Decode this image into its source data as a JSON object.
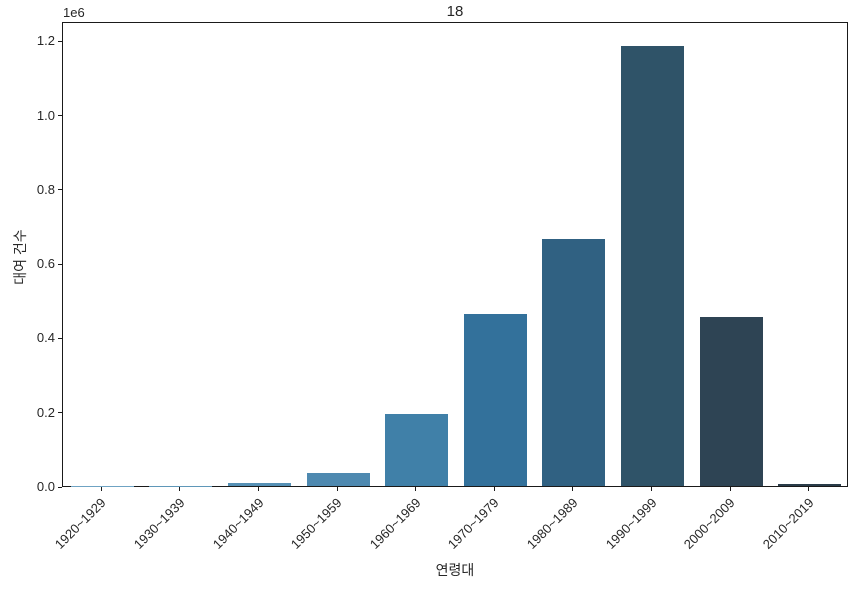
{
  "figure": {
    "title": "18",
    "offset_label": "1e6",
    "xlabel": "연령대",
    "ylabel": "대여 건수"
  },
  "chart_data": {
    "type": "bar",
    "title": "18",
    "xlabel": "연령대",
    "ylabel": "대여 건수",
    "y_offset_multiplier_label": "1e6",
    "categories": [
      "1920~1929",
      "1930~1939",
      "1940~1949",
      "1950~1959",
      "1960~1969",
      "1970~1979",
      "1980~1989",
      "1990~1999",
      "2000~2009",
      "2010~2019"
    ],
    "values": [
      500,
      1000,
      7000,
      36000,
      195000,
      464000,
      665000,
      1186000,
      454000,
      5000
    ],
    "bar_colors": [
      "#6fa3c3",
      "#5f97b8",
      "#5590b5",
      "#4e89b0",
      "#4080a8",
      "#33719b",
      "#306182",
      "#2f5368",
      "#2e4454",
      "#2a3c49"
    ],
    "ylim": [
      0,
      1252500
    ],
    "yticks": {
      "values": [
        0,
        200000,
        400000,
        600000,
        800000,
        1000000,
        1200000
      ],
      "labels": [
        "0.0",
        "0.2",
        "0.4",
        "0.6",
        "0.8",
        "1.0",
        "1.2"
      ]
    },
    "x_tick_rotation_deg": 45,
    "grid": false,
    "legend": null,
    "background_color": "#ffffff",
    "spine_color": "#1a1a1a"
  }
}
